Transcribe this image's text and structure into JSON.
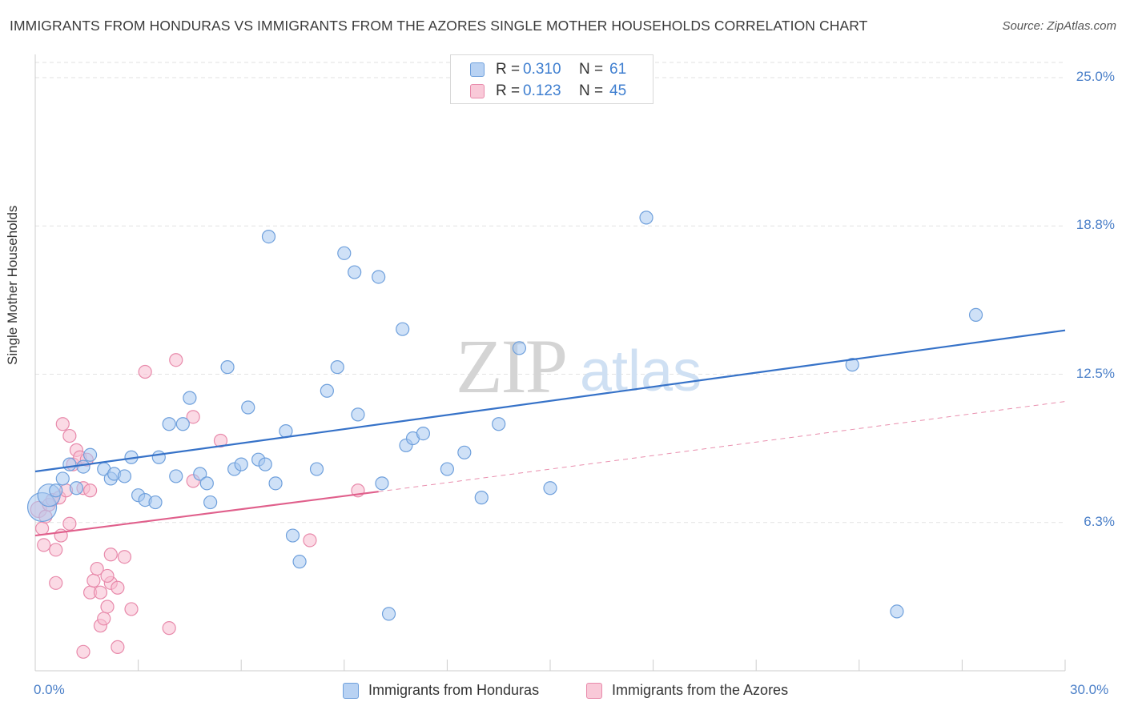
{
  "header": {
    "title": "IMMIGRANTS FROM HONDURAS VS IMMIGRANTS FROM THE AZORES SINGLE MOTHER HOUSEHOLDS CORRELATION CHART",
    "source": "Source: ZipAtlas.com"
  },
  "watermark": {
    "zip": "ZIP",
    "atlas": "atlas"
  },
  "legend_top": {
    "rows": [
      {
        "r_label": "R =",
        "r_value": "0.310",
        "n_label": "N =",
        "n_value": "61"
      },
      {
        "r_label": "R =",
        "r_value": "0.123",
        "n_label": "N =",
        "n_value": "45"
      }
    ]
  },
  "legend_bottom": {
    "items": [
      {
        "label": "Immigrants from Honduras"
      },
      {
        "label": "Immigrants from the Azores"
      }
    ]
  },
  "colors": {
    "series1_fill": "#a8c8f0",
    "series1_stroke": "#6fa0dc",
    "series1_line": "#3672c8",
    "series2_fill": "#f7bcd0",
    "series2_stroke": "#e88aab",
    "series2_line": "#e0608c",
    "grid": "#e2e2e2",
    "axis_text": "#4a7fc8"
  },
  "chart_data": {
    "type": "scatter",
    "title": "IMMIGRANTS FROM HONDURAS VS IMMIGRANTS FROM THE AZORES SINGLE MOTHER HOUSEHOLDS CORRELATION CHART",
    "xlabel": "",
    "ylabel": "Single Mother Households",
    "xlim": [
      0,
      30
    ],
    "ylim": [
      0,
      25
    ],
    "x_tick_labels": [
      "0.0%",
      "30.0%"
    ],
    "y_ticks": [
      6.25,
      12.5,
      18.75,
      25.0
    ],
    "y_tick_labels": [
      "6.3%",
      "12.5%",
      "18.8%",
      "25.0%"
    ],
    "grid": true,
    "legend_position": "top-center",
    "series": [
      {
        "name": "Immigrants from Honduras",
        "R": 0.31,
        "N": 61,
        "trend": {
          "x": [
            0,
            30
          ],
          "y": [
            8.4,
            14.35
          ],
          "dashed_extension": false
        },
        "points": [
          [
            0.2,
            6.9,
            18
          ],
          [
            0.4,
            7.4,
            14
          ],
          [
            0.6,
            7.6,
            8
          ],
          [
            0.8,
            8.1,
            8
          ],
          [
            1.0,
            8.7,
            8
          ],
          [
            1.2,
            7.7,
            8
          ],
          [
            1.4,
            8.6,
            8
          ],
          [
            1.6,
            9.1,
            8
          ],
          [
            2.0,
            8.5,
            8
          ],
          [
            2.2,
            8.1,
            8
          ],
          [
            2.3,
            8.3,
            8
          ],
          [
            2.6,
            8.2,
            8
          ],
          [
            2.8,
            9.0,
            8
          ],
          [
            3.0,
            7.4,
            8
          ],
          [
            3.2,
            7.2,
            8
          ],
          [
            3.5,
            7.1,
            8
          ],
          [
            3.6,
            9.0,
            8
          ],
          [
            3.9,
            10.4,
            8
          ],
          [
            4.1,
            8.2,
            8
          ],
          [
            4.3,
            10.4,
            8
          ],
          [
            4.5,
            11.5,
            8
          ],
          [
            4.8,
            8.3,
            8
          ],
          [
            5.0,
            7.9,
            8
          ],
          [
            5.1,
            7.1,
            8
          ],
          [
            5.6,
            12.8,
            8
          ],
          [
            5.8,
            8.5,
            8
          ],
          [
            6.0,
            8.7,
            8
          ],
          [
            6.2,
            11.1,
            8
          ],
          [
            6.5,
            8.9,
            8
          ],
          [
            6.7,
            8.7,
            8
          ],
          [
            6.8,
            18.3,
            8
          ],
          [
            7.0,
            7.9,
            8
          ],
          [
            7.3,
            10.1,
            8
          ],
          [
            7.5,
            5.7,
            8
          ],
          [
            7.7,
            4.6,
            8
          ],
          [
            8.2,
            8.5,
            8
          ],
          [
            8.5,
            11.8,
            8
          ],
          [
            8.8,
            12.8,
            8
          ],
          [
            9.0,
            17.6,
            8
          ],
          [
            9.3,
            16.8,
            8
          ],
          [
            9.4,
            10.8,
            8
          ],
          [
            10.0,
            16.6,
            8
          ],
          [
            10.1,
            7.9,
            8
          ],
          [
            10.3,
            2.4,
            8
          ],
          [
            10.7,
            14.4,
            8
          ],
          [
            10.8,
            9.5,
            8
          ],
          [
            11.0,
            9.8,
            8
          ],
          [
            11.3,
            10.0,
            8
          ],
          [
            12.0,
            8.5,
            8
          ],
          [
            12.5,
            9.2,
            8
          ],
          [
            13.0,
            7.3,
            8
          ],
          [
            13.5,
            10.4,
            8
          ],
          [
            14.1,
            13.6,
            8
          ],
          [
            15.0,
            7.7,
            8
          ],
          [
            17.8,
            19.1,
            8
          ],
          [
            23.8,
            12.9,
            8
          ],
          [
            25.1,
            2.5,
            8
          ],
          [
            27.4,
            15.0,
            8
          ]
        ]
      },
      {
        "name": "Immigrants from the Azores",
        "R": 0.123,
        "N": 45,
        "trend": {
          "x": [
            0,
            10.0
          ],
          "y": [
            5.7,
            7.55
          ],
          "dashed_extension_to": [
            30,
            11.35
          ]
        },
        "points": [
          [
            0.1,
            6.8,
            10
          ],
          [
            0.2,
            6.0,
            8
          ],
          [
            0.25,
            5.3,
            8
          ],
          [
            0.3,
            6.5,
            8
          ],
          [
            0.4,
            7.0,
            8
          ],
          [
            0.5,
            7.2,
            8
          ],
          [
            0.6,
            5.1,
            8
          ],
          [
            0.6,
            3.7,
            8
          ],
          [
            0.7,
            7.3,
            8
          ],
          [
            0.75,
            5.7,
            8
          ],
          [
            0.8,
            10.4,
            8
          ],
          [
            0.9,
            7.6,
            8
          ],
          [
            1.0,
            9.9,
            8
          ],
          [
            1.0,
            6.2,
            8
          ],
          [
            1.1,
            8.7,
            8
          ],
          [
            1.2,
            9.3,
            8
          ],
          [
            1.3,
            9.0,
            8
          ],
          [
            1.4,
            7.7,
            8
          ],
          [
            1.4,
            0.8,
            8
          ],
          [
            1.5,
            8.9,
            8
          ],
          [
            1.6,
            7.6,
            8
          ],
          [
            1.6,
            3.3,
            8
          ],
          [
            1.7,
            3.8,
            8
          ],
          [
            1.8,
            4.3,
            8
          ],
          [
            1.9,
            3.3,
            8
          ],
          [
            1.9,
            1.9,
            8
          ],
          [
            2.0,
            2.2,
            8
          ],
          [
            2.1,
            2.7,
            8
          ],
          [
            2.2,
            3.7,
            8
          ],
          [
            2.1,
            4.0,
            8
          ],
          [
            2.2,
            4.9,
            8
          ],
          [
            2.4,
            1.0,
            8
          ],
          [
            2.4,
            3.5,
            8
          ],
          [
            2.6,
            4.8,
            8
          ],
          [
            2.8,
            2.6,
            8
          ],
          [
            3.2,
            12.6,
            8
          ],
          [
            3.9,
            1.8,
            8
          ],
          [
            4.1,
            13.1,
            8
          ],
          [
            4.6,
            10.7,
            8
          ],
          [
            4.6,
            8.0,
            8
          ],
          [
            5.4,
            9.7,
            8
          ],
          [
            8.0,
            5.5,
            8
          ],
          [
            9.4,
            7.6,
            8
          ]
        ]
      }
    ]
  }
}
